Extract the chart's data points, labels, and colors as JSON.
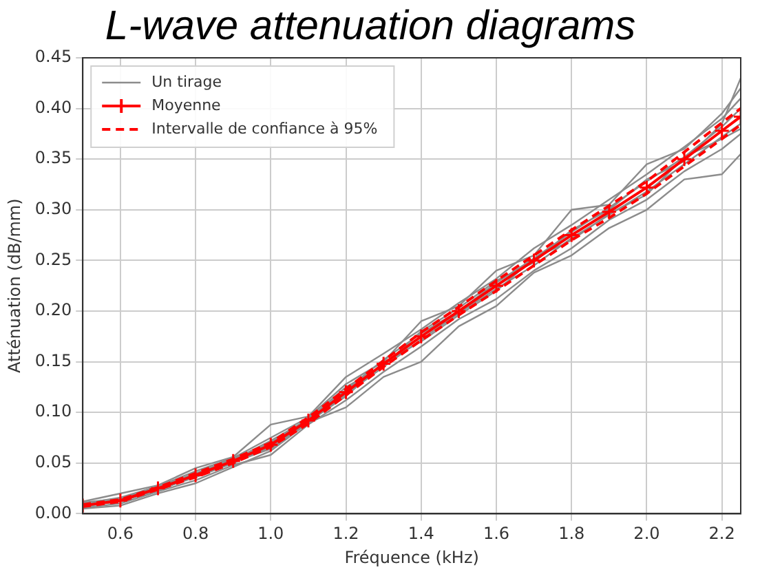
{
  "chart_data": {
    "type": "line",
    "title": "L-wave attenuation diagrams",
    "xlabel": "Fréquence (kHz)",
    "ylabel": "Atténuation (dB/mm)",
    "x": [
      0.5,
      0.6,
      0.7,
      0.8,
      0.9,
      1.0,
      1.1,
      1.2,
      1.3,
      1.4,
      1.5,
      1.6,
      1.7,
      1.8,
      1.9,
      2.0,
      2.1,
      2.2,
      2.25
    ],
    "series": [
      {
        "name": "Un tirage",
        "color": "#8c8c8c",
        "values": [
          0.01,
          0.016,
          0.027,
          0.042,
          0.055,
          0.075,
          0.095,
          0.128,
          0.15,
          0.19,
          0.205,
          0.24,
          0.255,
          0.3,
          0.305,
          0.345,
          0.36,
          0.395,
          0.42
        ]
      },
      {
        "color": "#8c8c8c",
        "values": [
          0.006,
          0.01,
          0.022,
          0.033,
          0.048,
          0.058,
          0.088,
          0.112,
          0.14,
          0.165,
          0.192,
          0.212,
          0.24,
          0.262,
          0.29,
          0.31,
          0.338,
          0.36,
          0.375
        ]
      },
      {
        "color": "#8c8c8c",
        "values": [
          0.012,
          0.02,
          0.028,
          0.045,
          0.056,
          0.088,
          0.096,
          0.135,
          0.158,
          0.182,
          0.208,
          0.232,
          0.262,
          0.285,
          0.31,
          0.335,
          0.362,
          0.39,
          0.41
        ]
      },
      {
        "color": "#8c8c8c",
        "values": [
          0.005,
          0.008,
          0.02,
          0.03,
          0.046,
          0.062,
          0.09,
          0.105,
          0.135,
          0.15,
          0.185,
          0.205,
          0.238,
          0.255,
          0.282,
          0.3,
          0.33,
          0.335,
          0.355
        ]
      },
      {
        "color": "#8c8c8c",
        "values": [
          0.009,
          0.014,
          0.026,
          0.04,
          0.054,
          0.07,
          0.094,
          0.122,
          0.152,
          0.178,
          0.2,
          0.228,
          0.252,
          0.278,
          0.302,
          0.328,
          0.352,
          0.382,
          0.4
        ]
      },
      {
        "color": "#8c8c8c",
        "values": [
          0.008,
          0.012,
          0.024,
          0.036,
          0.05,
          0.066,
          0.09,
          0.118,
          0.145,
          0.172,
          0.198,
          0.222,
          0.245,
          0.272,
          0.295,
          0.318,
          0.345,
          0.372,
          0.385
        ]
      },
      {
        "color": "#8c8c8c",
        "values": [
          0.011,
          0.015,
          0.027,
          0.039,
          0.053,
          0.072,
          0.093,
          0.125,
          0.146,
          0.18,
          0.203,
          0.23,
          0.248,
          0.28,
          0.3,
          0.33,
          0.348,
          0.385,
          0.43
        ]
      },
      {
        "color": "#8c8c8c",
        "values": [
          0.007,
          0.013,
          0.023,
          0.037,
          0.051,
          0.064,
          0.091,
          0.116,
          0.149,
          0.17,
          0.196,
          0.22,
          0.252,
          0.27,
          0.296,
          0.315,
          0.352,
          0.37,
          0.38
        ]
      },
      {
        "name": "Moyenne",
        "color": "#ff0000",
        "marker": "cross",
        "values": [
          0.008,
          0.013,
          0.025,
          0.038,
          0.052,
          0.068,
          0.092,
          0.12,
          0.148,
          0.175,
          0.2,
          0.225,
          0.25,
          0.275,
          0.298,
          0.322,
          0.35,
          0.378,
          0.392
        ]
      },
      {
        "name": "Intervalle de confiance à 95%",
        "color": "#ff0000",
        "line_style": "dashed",
        "values": [
          0.007,
          0.012,
          0.024,
          0.036,
          0.05,
          0.066,
          0.089,
          0.117,
          0.145,
          0.171,
          0.196,
          0.22,
          0.245,
          0.27,
          0.292,
          0.316,
          0.343,
          0.37,
          0.384
        ]
      },
      {
        "color": "#ff0000",
        "line_style": "dashed",
        "values": [
          0.009,
          0.014,
          0.026,
          0.04,
          0.054,
          0.07,
          0.095,
          0.123,
          0.151,
          0.179,
          0.204,
          0.23,
          0.255,
          0.28,
          0.304,
          0.328,
          0.357,
          0.386,
          0.4
        ]
      }
    ],
    "xlim": [
      0.5,
      2.25
    ],
    "xticks": [
      0.6,
      0.8,
      {
        "value": 1,
        "label": "1.0"
      },
      1.2,
      1.4,
      1.6,
      1.8,
      {
        "value": 2,
        "label": "2.0"
      },
      2.2
    ],
    "ylim": [
      0,
      0.45
    ],
    "yticks": [
      {
        "value": 0,
        "label": "0.00"
      },
      0.05,
      {
        "value": 0.1,
        "label": "0.10"
      },
      0.15,
      {
        "value": 0.2,
        "label": "0.20"
      },
      0.25,
      {
        "value": 0.3,
        "label": "0.30"
      },
      0.35,
      {
        "value": 0.4,
        "label": "0.40"
      },
      0.45
    ],
    "grid": true,
    "legend": "top left"
  }
}
